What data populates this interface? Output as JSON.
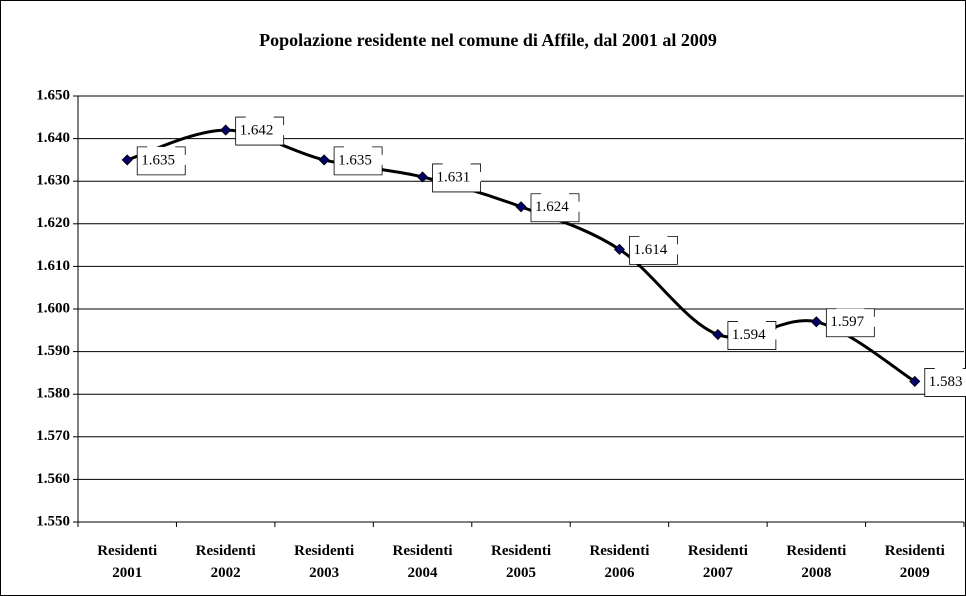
{
  "chart_data": {
    "type": "line",
    "title": "Popolazione residente nel comune di Affile, dal 2001 al 2009",
    "categories": [
      "Residenti 2001",
      "Residenti 2002",
      "Residenti 2003",
      "Residenti 2004",
      "Residenti 2005",
      "Residenti 2006",
      "Residenti 2007",
      "Residenti 2008",
      "Residenti 2009"
    ],
    "series": [
      {
        "name": "Residenti",
        "color": "#000000",
        "marker_color": "#000066",
        "values": [
          1635,
          1642,
          1635,
          1631,
          1624,
          1614,
          1594,
          1597,
          1583
        ],
        "value_labels": [
          "1.635",
          "1.642",
          "1.635",
          "1.631",
          "1.624",
          "1.614",
          "1.594",
          "1.597",
          "1.583"
        ]
      }
    ],
    "ylim": [
      1550,
      1650
    ],
    "yticks": [
      {
        "value": 1550,
        "label": "1.550"
      },
      {
        "value": 1560,
        "label": "1.560"
      },
      {
        "value": 1570,
        "label": "1.570"
      },
      {
        "value": 1580,
        "label": "1.580"
      },
      {
        "value": 1590,
        "label": "1.590"
      },
      {
        "value": 1600,
        "label": "1.600"
      },
      {
        "value": 1610,
        "label": "1.610"
      },
      {
        "value": 1620,
        "label": "1.620"
      },
      {
        "value": 1630,
        "label": "1.630"
      },
      {
        "value": 1640,
        "label": "1.640"
      },
      {
        "value": 1650,
        "label": "1.650"
      }
    ],
    "grid": true
  }
}
